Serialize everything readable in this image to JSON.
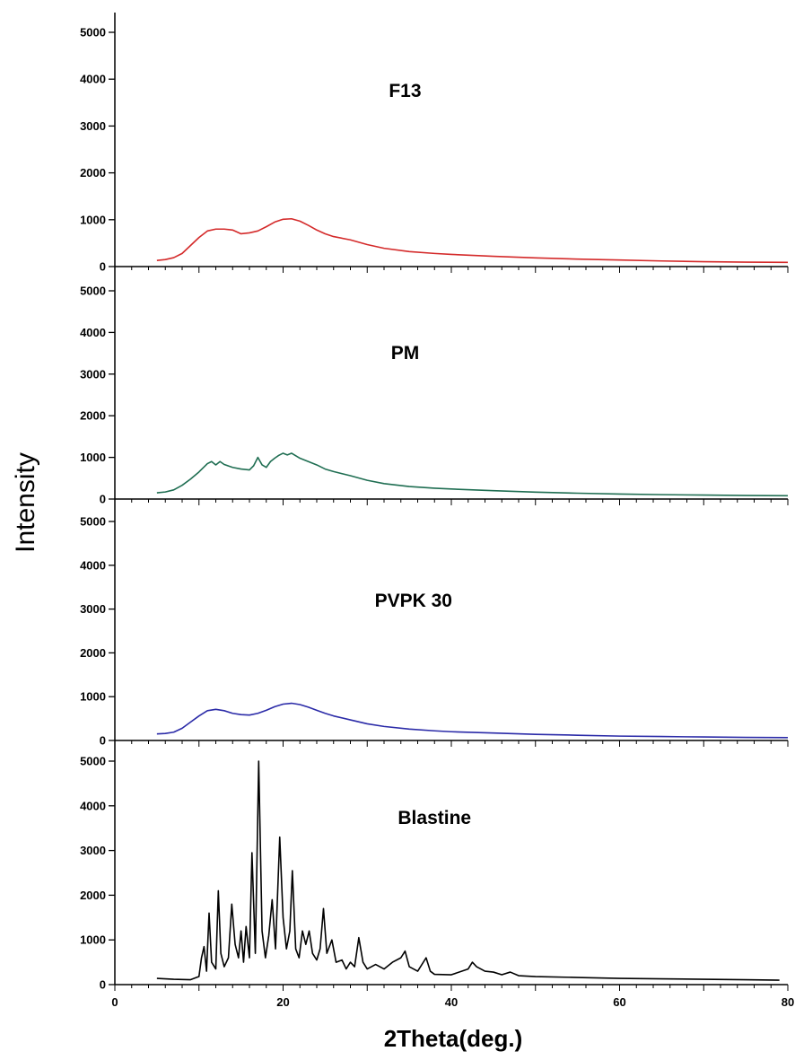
{
  "chart_data": {
    "type": "line",
    "xlabel": "2Theta(deg.)",
    "ylabel": "Intensity",
    "xlim": [
      0,
      80
    ],
    "ylim": [
      0,
      5000
    ],
    "x_ticks": [
      0,
      20,
      40,
      60,
      80
    ],
    "y_ticks": [
      0,
      1000,
      2000,
      3000,
      4000,
      5000
    ],
    "panels": [
      {
        "title": "F13",
        "color": "#d42a2a",
        "points": [
          [
            5,
            130
          ],
          [
            6,
            150
          ],
          [
            7,
            190
          ],
          [
            8,
            280
          ],
          [
            9,
            450
          ],
          [
            10,
            620
          ],
          [
            11,
            760
          ],
          [
            12,
            800
          ],
          [
            13,
            800
          ],
          [
            14,
            780
          ],
          [
            15,
            700
          ],
          [
            16,
            720
          ],
          [
            17,
            760
          ],
          [
            18,
            850
          ],
          [
            19,
            950
          ],
          [
            20,
            1010
          ],
          [
            21,
            1020
          ],
          [
            22,
            970
          ],
          [
            23,
            880
          ],
          [
            24,
            780
          ],
          [
            25,
            700
          ],
          [
            26,
            640
          ],
          [
            28,
            570
          ],
          [
            30,
            470
          ],
          [
            32,
            390
          ],
          [
            35,
            320
          ],
          [
            38,
            280
          ],
          [
            40,
            260
          ],
          [
            45,
            220
          ],
          [
            50,
            185
          ],
          [
            55,
            160
          ],
          [
            60,
            140
          ],
          [
            65,
            120
          ],
          [
            70,
            105
          ],
          [
            75,
            95
          ],
          [
            80,
            90
          ]
        ]
      },
      {
        "title": "PM",
        "color": "#1f6e52",
        "points": [
          [
            5,
            150
          ],
          [
            6,
            170
          ],
          [
            7,
            220
          ],
          [
            8,
            330
          ],
          [
            9,
            480
          ],
          [
            10,
            650
          ],
          [
            11,
            850
          ],
          [
            11.5,
            900
          ],
          [
            12,
            820
          ],
          [
            12.5,
            900
          ],
          [
            13,
            830
          ],
          [
            14,
            760
          ],
          [
            15,
            720
          ],
          [
            16,
            700
          ],
          [
            16.5,
            800
          ],
          [
            17,
            1000
          ],
          [
            17.5,
            820
          ],
          [
            18,
            760
          ],
          [
            18.5,
            900
          ],
          [
            19,
            980
          ],
          [
            19.5,
            1050
          ],
          [
            20,
            1100
          ],
          [
            20.5,
            1060
          ],
          [
            21,
            1100
          ],
          [
            22,
            980
          ],
          [
            23,
            900
          ],
          [
            24,
            820
          ],
          [
            25,
            720
          ],
          [
            26,
            660
          ],
          [
            28,
            560
          ],
          [
            30,
            450
          ],
          [
            32,
            370
          ],
          [
            35,
            300
          ],
          [
            38,
            260
          ],
          [
            40,
            240
          ],
          [
            45,
            200
          ],
          [
            50,
            165
          ],
          [
            55,
            140
          ],
          [
            60,
            120
          ],
          [
            65,
            105
          ],
          [
            70,
            95
          ],
          [
            75,
            85
          ],
          [
            80,
            80
          ]
        ]
      },
      {
        "title": "PVPK 30",
        "color": "#2b2ba8",
        "points": [
          [
            5,
            150
          ],
          [
            6,
            160
          ],
          [
            7,
            190
          ],
          [
            8,
            280
          ],
          [
            9,
            420
          ],
          [
            10,
            560
          ],
          [
            11,
            680
          ],
          [
            12,
            710
          ],
          [
            13,
            680
          ],
          [
            14,
            620
          ],
          [
            15,
            590
          ],
          [
            16,
            580
          ],
          [
            17,
            620
          ],
          [
            18,
            690
          ],
          [
            19,
            770
          ],
          [
            20,
            830
          ],
          [
            21,
            850
          ],
          [
            22,
            820
          ],
          [
            23,
            760
          ],
          [
            24,
            690
          ],
          [
            25,
            620
          ],
          [
            26,
            560
          ],
          [
            28,
            470
          ],
          [
            30,
            380
          ],
          [
            32,
            320
          ],
          [
            35,
            260
          ],
          [
            38,
            220
          ],
          [
            40,
            200
          ],
          [
            45,
            170
          ],
          [
            50,
            140
          ],
          [
            55,
            120
          ],
          [
            60,
            100
          ],
          [
            65,
            90
          ],
          [
            70,
            80
          ],
          [
            75,
            70
          ],
          [
            80,
            65
          ]
        ]
      },
      {
        "title": "Blastine",
        "color": "#000000",
        "points": [
          [
            5,
            140
          ],
          [
            7,
            120
          ],
          [
            9,
            110
          ],
          [
            10,
            180
          ],
          [
            10.3,
            600
          ],
          [
            10.6,
            850
          ],
          [
            10.9,
            300
          ],
          [
            11.2,
            1600
          ],
          [
            11.5,
            500
          ],
          [
            12,
            350
          ],
          [
            12.3,
            2100
          ],
          [
            12.6,
            700
          ],
          [
            13,
            400
          ],
          [
            13.5,
            600
          ],
          [
            13.9,
            1800
          ],
          [
            14.3,
            900
          ],
          [
            14.7,
            600
          ],
          [
            15,
            1200
          ],
          [
            15.3,
            500
          ],
          [
            15.6,
            1300
          ],
          [
            16,
            600
          ],
          [
            16.3,
            2950
          ],
          [
            16.7,
            700
          ],
          [
            17.1,
            5000
          ],
          [
            17.5,
            1200
          ],
          [
            17.9,
            600
          ],
          [
            18.3,
            1100
          ],
          [
            18.7,
            1900
          ],
          [
            19.1,
            800
          ],
          [
            19.6,
            3300
          ],
          [
            20,
            1500
          ],
          [
            20.4,
            800
          ],
          [
            20.8,
            1200
          ],
          [
            21.1,
            2550
          ],
          [
            21.5,
            800
          ],
          [
            21.9,
            600
          ],
          [
            22.3,
            1200
          ],
          [
            22.7,
            900
          ],
          [
            23.1,
            1200
          ],
          [
            23.5,
            700
          ],
          [
            24,
            550
          ],
          [
            24.4,
            800
          ],
          [
            24.8,
            1700
          ],
          [
            25.2,
            700
          ],
          [
            25.8,
            1000
          ],
          [
            26.3,
            500
          ],
          [
            27,
            550
          ],
          [
            27.5,
            350
          ],
          [
            28,
            500
          ],
          [
            28.5,
            400
          ],
          [
            29,
            1050
          ],
          [
            29.5,
            500
          ],
          [
            30,
            350
          ],
          [
            31,
            450
          ],
          [
            32,
            350
          ],
          [
            33,
            500
          ],
          [
            34,
            600
          ],
          [
            34.5,
            750
          ],
          [
            35,
            400
          ],
          [
            36,
            300
          ],
          [
            37,
            600
          ],
          [
            37.5,
            300
          ],
          [
            38,
            230
          ],
          [
            40,
            220
          ],
          [
            42,
            350
          ],
          [
            42.5,
            500
          ],
          [
            43,
            400
          ],
          [
            44,
            300
          ],
          [
            45,
            280
          ],
          [
            46,
            220
          ],
          [
            47,
            280
          ],
          [
            48,
            200
          ],
          [
            50,
            180
          ],
          [
            55,
            160
          ],
          [
            60,
            140
          ],
          [
            65,
            130
          ],
          [
            70,
            120
          ],
          [
            75,
            110
          ],
          [
            79,
            100
          ]
        ]
      }
    ]
  }
}
